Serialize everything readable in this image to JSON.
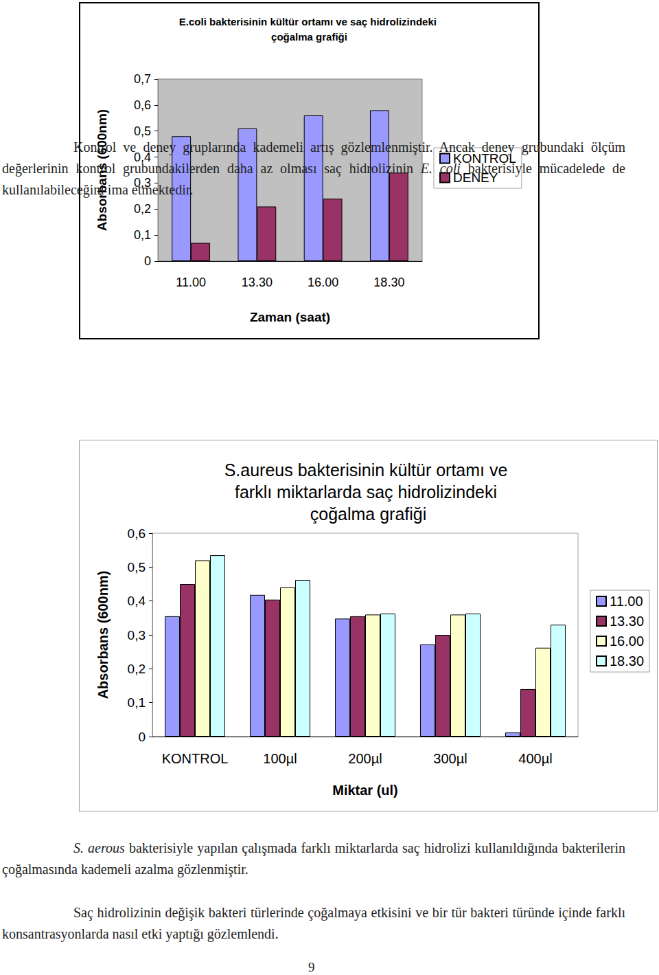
{
  "chart_data": [
    {
      "type": "bar",
      "title": "E.coli bakterisinin kültür ortamı ve saç hidrolizindeki çoğalma grafiği",
      "x_label": "Zaman (saat)",
      "y_label": "Absorbans (600nm)",
      "categories": [
        "11.00",
        "13.30",
        "16.00",
        "18.30"
      ],
      "series": [
        {
          "name": "KONTROL",
          "color": "#9999ff",
          "values": [
            0.48,
            0.51,
            0.56,
            0.58
          ]
        },
        {
          "name": "DENEY",
          "color": "#993366",
          "values": [
            0.07,
            0.21,
            0.24,
            0.34
          ]
        }
      ],
      "ylim": [
        0,
        0.7
      ],
      "yticks": [
        0,
        {
          "value": 0.1,
          "label": "0,1"
        },
        {
          "value": 0.2,
          "label": "0,2"
        },
        {
          "value": 0.3,
          "label": "0,3"
        },
        {
          "value": 0.4,
          "label": "0,4"
        },
        {
          "value": 0.5,
          "label": "0,5"
        },
        {
          "value": 0.6,
          "label": "0,6"
        },
        {
          "value": 0.7,
          "label": "0,7"
        }
      ],
      "grid": false,
      "legend": "right"
    },
    {
      "type": "bar",
      "title": "S.aureus bakterisinin kültür ortamı ve farklı miktarlarda saç hidrolizindeki çoğalma grafiği",
      "x_label": "Miktar (ul)",
      "y_label": "Absorbans (600nm)",
      "categories": [
        "KONTROL",
        "100µl",
        "200µl",
        "300µl",
        "400µl"
      ],
      "series": [
        {
          "name": "11.00",
          "color": "#9999ff",
          "values": [
            0.355,
            0.418,
            0.348,
            0.272,
            0.012
          ]
        },
        {
          "name": "13.30",
          "color": "#993366",
          "values": [
            0.45,
            0.404,
            0.355,
            0.3,
            0.14
          ]
        },
        {
          "name": "16.00",
          "color": "#ffffcc",
          "values": [
            0.52,
            0.44,
            0.36,
            0.36,
            0.262
          ]
        },
        {
          "name": "18.30",
          "color": "#ccffff",
          "values": [
            0.535,
            0.462,
            0.363,
            0.363,
            0.33
          ]
        }
      ],
      "ylim": [
        0,
        0.6
      ],
      "yticks": [
        0,
        {
          "value": 0.1,
          "label": "0,1"
        },
        {
          "value": 0.2,
          "label": "0,2"
        },
        {
          "value": 0.3,
          "label": "0,3"
        },
        {
          "value": 0.4,
          "label": "0,4"
        },
        {
          "value": 0.5,
          "label": "0,5"
        },
        {
          "value": 0.6,
          "label": "0,6"
        }
      ],
      "grid": false,
      "legend": "right"
    }
  ],
  "paragraphs": [
    [
      {
        "text": "Kontrol ve deney gruplarında kademeli artış gözlemlenmiştir. Ancak deney grubundaki ölçüm değerlerinin kontrol grubundakilerden daha az olması saç hidrolizinin "
      },
      {
        "text": "E. coli",
        "italic": true
      },
      {
        "text": " bakterisiyle mücadelede de kullanılabileceğini ima etmektedir."
      }
    ],
    [
      {
        "text": "S. aerous",
        "italic": true
      },
      {
        "text": " bakterisiyle yapılan çalışmada farklı miktarlarda saç hidrolizi kullanıldığında bakterilerin çoğalmasında kademeli azalma gözlenmiştir."
      }
    ],
    [
      {
        "text": "Saç hidrolizinin değişik bakteri türlerinde çoğalmaya etkisini ve bir tür bakteri türünde içinde farklı konsantrasyonlarda nasıl etki yaptığı gözlemlendi."
      }
    ]
  ],
  "page_number": "9"
}
